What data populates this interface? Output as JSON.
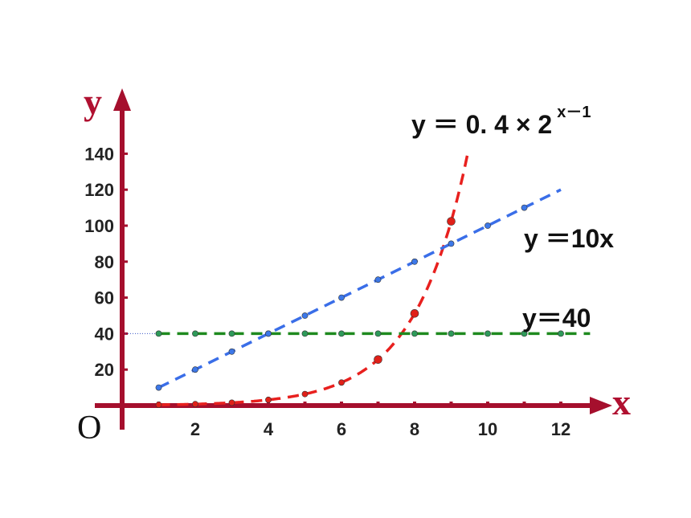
{
  "chart_data": {
    "type": "line",
    "xlabel": "x",
    "ylabel": "y",
    "origin_label": "O",
    "xlim": [
      0,
      13
    ],
    "ylim": [
      -5,
      160
    ],
    "x_ticks": [
      2,
      4,
      6,
      8,
      10,
      12
    ],
    "y_ticks": [
      20,
      40,
      60,
      80,
      100,
      120,
      140
    ],
    "grid": false,
    "colors": {
      "axis": "#a50f2d",
      "exponential": "#e8201e",
      "linear": "#3a6ee8",
      "constant": "#1f8a1f"
    },
    "series": [
      {
        "name": "y = 0.4 × 2^(x−1)",
        "label": {
          "main": "y ＝ 0. 4 × 2",
          "sup": "x－1"
        },
        "style": "dashed",
        "x": [
          1,
          2,
          3,
          4,
          5,
          6,
          7,
          8,
          9
        ],
        "y": [
          0.4,
          0.8,
          1.6,
          3.2,
          6.4,
          12.8,
          25.6,
          51.2,
          102.4
        ]
      },
      {
        "name": "y = 10x",
        "label": {
          "main": "y ＝10x"
        },
        "style": "dashed",
        "x": [
          1,
          2,
          3,
          4,
          5,
          6,
          7,
          8,
          9,
          10,
          11
        ],
        "y": [
          10,
          20,
          30,
          40,
          50,
          60,
          70,
          80,
          90,
          100,
          110
        ]
      },
      {
        "name": "y = 40",
        "label": {
          "main": "y＝40"
        },
        "style": "dashed",
        "x": [
          1,
          2,
          3,
          4,
          5,
          6,
          7,
          8,
          9,
          10,
          11,
          12
        ],
        "y": [
          40,
          40,
          40,
          40,
          40,
          40,
          40,
          40,
          40,
          40,
          40,
          40
        ]
      }
    ]
  }
}
